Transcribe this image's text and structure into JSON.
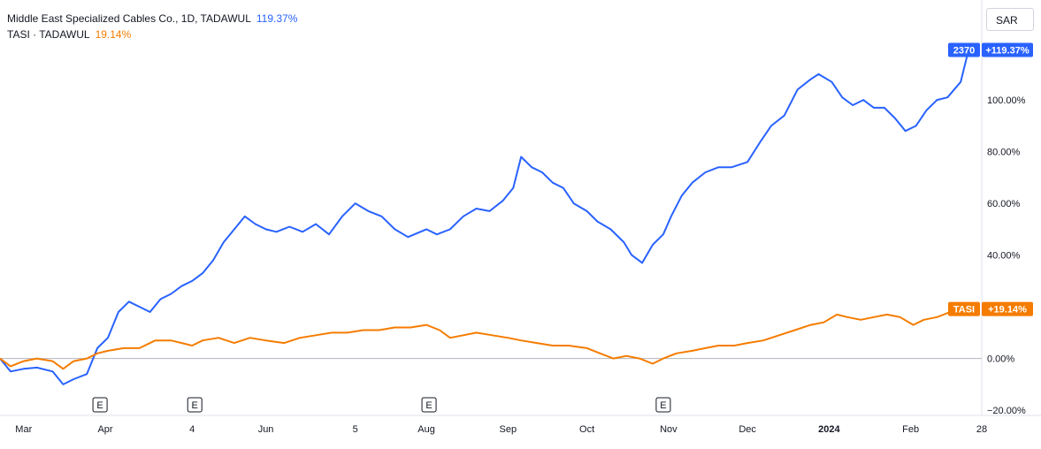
{
  "legend": {
    "series1_label": "Middle East Specialized Cables Co., 1D, TADAWUL",
    "series1_value": "119.37%",
    "series2_label": "TASI · TADAWUL",
    "series2_value": "19.14%"
  },
  "currency_label": "SAR",
  "colors": {
    "stock": "#2962ff",
    "index": "#f57c00",
    "zero_line": "#b2b5be",
    "axis_text": "#131722"
  },
  "chart_data": {
    "type": "line",
    "ylim": [
      -22,
      125
    ],
    "y_ticks": [
      -20,
      0,
      20,
      40,
      60,
      80,
      100
    ],
    "y_tick_labels": [
      "−20.00%",
      "0.00%",
      "20.00%",
      "40.00%",
      "60.00%",
      "80.00%",
      "100.00%"
    ],
    "y_unit": "%",
    "x_range": [
      "2023-02-20",
      "2024-02-28"
    ],
    "x_ticks": [
      {
        "date": "2023-03-01",
        "label": "Mar",
        "bold": false
      },
      {
        "date": "2023-04-01",
        "label": "Apr",
        "bold": false
      },
      {
        "date": "2023-05-04",
        "label": "4",
        "bold": false
      },
      {
        "date": "2023-06-01",
        "label": "Jun",
        "bold": false
      },
      {
        "date": "2023-07-05",
        "label": "5",
        "bold": false
      },
      {
        "date": "2023-08-01",
        "label": "Aug",
        "bold": false
      },
      {
        "date": "2023-09-01",
        "label": "Sep",
        "bold": false
      },
      {
        "date": "2023-10-01",
        "label": "Oct",
        "bold": false
      },
      {
        "date": "2023-11-01",
        "label": "Nov",
        "bold": false
      },
      {
        "date": "2023-12-01",
        "label": "Dec",
        "bold": false
      },
      {
        "date": "2024-01-01",
        "label": "2024",
        "bold": true
      },
      {
        "date": "2024-02-01",
        "label": "Feb",
        "bold": false
      },
      {
        "date": "2024-02-28",
        "label": "28",
        "bold": false
      }
    ],
    "earnings_markers": [
      {
        "date": "2023-03-30",
        "label": "E"
      },
      {
        "date": "2023-05-05",
        "label": "E"
      },
      {
        "date": "2023-08-02",
        "label": "E"
      },
      {
        "date": "2023-10-30",
        "label": "E"
      }
    ],
    "series": [
      {
        "name": "Middle East Specialized Cables Co., 1D, TADAWUL",
        "color": "#2962ff",
        "last_label": "2370",
        "last_value_label": "+119.37%",
        "points": [
          [
            "2023-02-20",
            0
          ],
          [
            "2023-02-24",
            -5
          ],
          [
            "2023-03-01",
            -4
          ],
          [
            "2023-03-06",
            -3.5
          ],
          [
            "2023-03-12",
            -5
          ],
          [
            "2023-03-16",
            -10
          ],
          [
            "2023-03-20",
            -8
          ],
          [
            "2023-03-25",
            -6
          ],
          [
            "2023-03-29",
            4
          ],
          [
            "2023-04-02",
            8
          ],
          [
            "2023-04-06",
            18
          ],
          [
            "2023-04-10",
            22
          ],
          [
            "2023-04-14",
            20
          ],
          [
            "2023-04-18",
            18
          ],
          [
            "2023-04-22",
            23
          ],
          [
            "2023-04-26",
            25
          ],
          [
            "2023-04-30",
            28
          ],
          [
            "2023-05-04",
            30
          ],
          [
            "2023-05-08",
            33
          ],
          [
            "2023-05-12",
            38
          ],
          [
            "2023-05-16",
            45
          ],
          [
            "2023-05-20",
            50
          ],
          [
            "2023-05-24",
            55
          ],
          [
            "2023-05-28",
            52
          ],
          [
            "2023-06-01",
            50
          ],
          [
            "2023-06-05",
            49
          ],
          [
            "2023-06-10",
            51
          ],
          [
            "2023-06-15",
            49
          ],
          [
            "2023-06-20",
            52
          ],
          [
            "2023-06-25",
            48
          ],
          [
            "2023-06-30",
            55
          ],
          [
            "2023-07-05",
            60
          ],
          [
            "2023-07-10",
            57
          ],
          [
            "2023-07-15",
            55
          ],
          [
            "2023-07-20",
            50
          ],
          [
            "2023-07-25",
            47
          ],
          [
            "2023-08-01",
            50
          ],
          [
            "2023-08-05",
            48
          ],
          [
            "2023-08-10",
            50
          ],
          [
            "2023-08-15",
            55
          ],
          [
            "2023-08-20",
            58
          ],
          [
            "2023-08-25",
            57
          ],
          [
            "2023-08-30",
            61
          ],
          [
            "2023-09-03",
            66
          ],
          [
            "2023-09-06",
            78
          ],
          [
            "2023-09-10",
            74
          ],
          [
            "2023-09-14",
            72
          ],
          [
            "2023-09-18",
            68
          ],
          [
            "2023-09-22",
            66
          ],
          [
            "2023-09-26",
            60
          ],
          [
            "2023-10-01",
            57
          ],
          [
            "2023-10-05",
            53
          ],
          [
            "2023-10-10",
            50
          ],
          [
            "2023-10-15",
            45
          ],
          [
            "2023-10-18",
            40
          ],
          [
            "2023-10-22",
            37
          ],
          [
            "2023-10-26",
            44
          ],
          [
            "2023-10-30",
            48
          ],
          [
            "2023-11-02",
            55
          ],
          [
            "2023-11-06",
            63
          ],
          [
            "2023-11-10",
            68
          ],
          [
            "2023-11-15",
            72
          ],
          [
            "2023-11-20",
            74
          ],
          [
            "2023-11-25",
            74
          ],
          [
            "2023-12-01",
            76
          ],
          [
            "2023-12-06",
            84
          ],
          [
            "2023-12-10",
            90
          ],
          [
            "2023-12-15",
            94
          ],
          [
            "2023-12-20",
            104
          ],
          [
            "2023-12-25",
            108
          ],
          [
            "2023-12-28",
            110
          ],
          [
            "2024-01-02",
            107
          ],
          [
            "2024-01-06",
            101
          ],
          [
            "2024-01-10",
            98
          ],
          [
            "2024-01-14",
            100
          ],
          [
            "2024-01-18",
            97
          ],
          [
            "2024-01-22",
            97
          ],
          [
            "2024-01-26",
            93
          ],
          [
            "2024-01-30",
            88
          ],
          [
            "2024-02-03",
            90
          ],
          [
            "2024-02-07",
            96
          ],
          [
            "2024-02-11",
            100
          ],
          [
            "2024-02-15",
            101
          ],
          [
            "2024-02-20",
            107
          ],
          [
            "2024-02-23",
            119.37
          ]
        ]
      },
      {
        "name": "TASI · TADAWUL",
        "color": "#f57c00",
        "last_label": "TASI",
        "last_value_label": "+19.14%",
        "points": [
          [
            "2023-02-20",
            0
          ],
          [
            "2023-02-24",
            -3
          ],
          [
            "2023-03-01",
            -1
          ],
          [
            "2023-03-06",
            0
          ],
          [
            "2023-03-12",
            -1
          ],
          [
            "2023-03-16",
            -4
          ],
          [
            "2023-03-20",
            -1
          ],
          [
            "2023-03-25",
            0
          ],
          [
            "2023-03-29",
            2
          ],
          [
            "2023-04-02",
            3
          ],
          [
            "2023-04-08",
            4
          ],
          [
            "2023-04-14",
            4
          ],
          [
            "2023-04-20",
            7
          ],
          [
            "2023-04-26",
            7
          ],
          [
            "2023-05-04",
            5
          ],
          [
            "2023-05-08",
            7
          ],
          [
            "2023-05-14",
            8
          ],
          [
            "2023-05-20",
            6
          ],
          [
            "2023-05-26",
            8
          ],
          [
            "2023-06-01",
            7
          ],
          [
            "2023-06-08",
            6
          ],
          [
            "2023-06-14",
            8
          ],
          [
            "2023-06-20",
            9
          ],
          [
            "2023-06-26",
            10
          ],
          [
            "2023-07-02",
            10
          ],
          [
            "2023-07-08",
            11
          ],
          [
            "2023-07-14",
            11
          ],
          [
            "2023-07-20",
            12
          ],
          [
            "2023-07-26",
            12
          ],
          [
            "2023-08-01",
            13
          ],
          [
            "2023-08-06",
            11
          ],
          [
            "2023-08-10",
            8
          ],
          [
            "2023-08-15",
            9
          ],
          [
            "2023-08-20",
            10
          ],
          [
            "2023-08-26",
            9
          ],
          [
            "2023-09-01",
            8
          ],
          [
            "2023-09-06",
            7
          ],
          [
            "2023-09-12",
            6
          ],
          [
            "2023-09-18",
            5
          ],
          [
            "2023-09-24",
            5
          ],
          [
            "2023-10-01",
            4
          ],
          [
            "2023-10-06",
            2
          ],
          [
            "2023-10-11",
            0
          ],
          [
            "2023-10-16",
            1
          ],
          [
            "2023-10-21",
            0
          ],
          [
            "2023-10-26",
            -2
          ],
          [
            "2023-10-30",
            0
          ],
          [
            "2023-11-04",
            2
          ],
          [
            "2023-11-10",
            3
          ],
          [
            "2023-11-15",
            4
          ],
          [
            "2023-11-20",
            5
          ],
          [
            "2023-11-26",
            5
          ],
          [
            "2023-12-01",
            6
          ],
          [
            "2023-12-07",
            7
          ],
          [
            "2023-12-13",
            9
          ],
          [
            "2023-12-19",
            11
          ],
          [
            "2023-12-25",
            13
          ],
          [
            "2023-12-30",
            14
          ],
          [
            "2024-01-04",
            17
          ],
          [
            "2024-01-08",
            16
          ],
          [
            "2024-01-13",
            15
          ],
          [
            "2024-01-18",
            16
          ],
          [
            "2024-01-23",
            17
          ],
          [
            "2024-01-28",
            16
          ],
          [
            "2024-02-02",
            13
          ],
          [
            "2024-02-06",
            15
          ],
          [
            "2024-02-11",
            16
          ],
          [
            "2024-02-16",
            18
          ],
          [
            "2024-02-23",
            19.14
          ]
        ]
      }
    ]
  }
}
